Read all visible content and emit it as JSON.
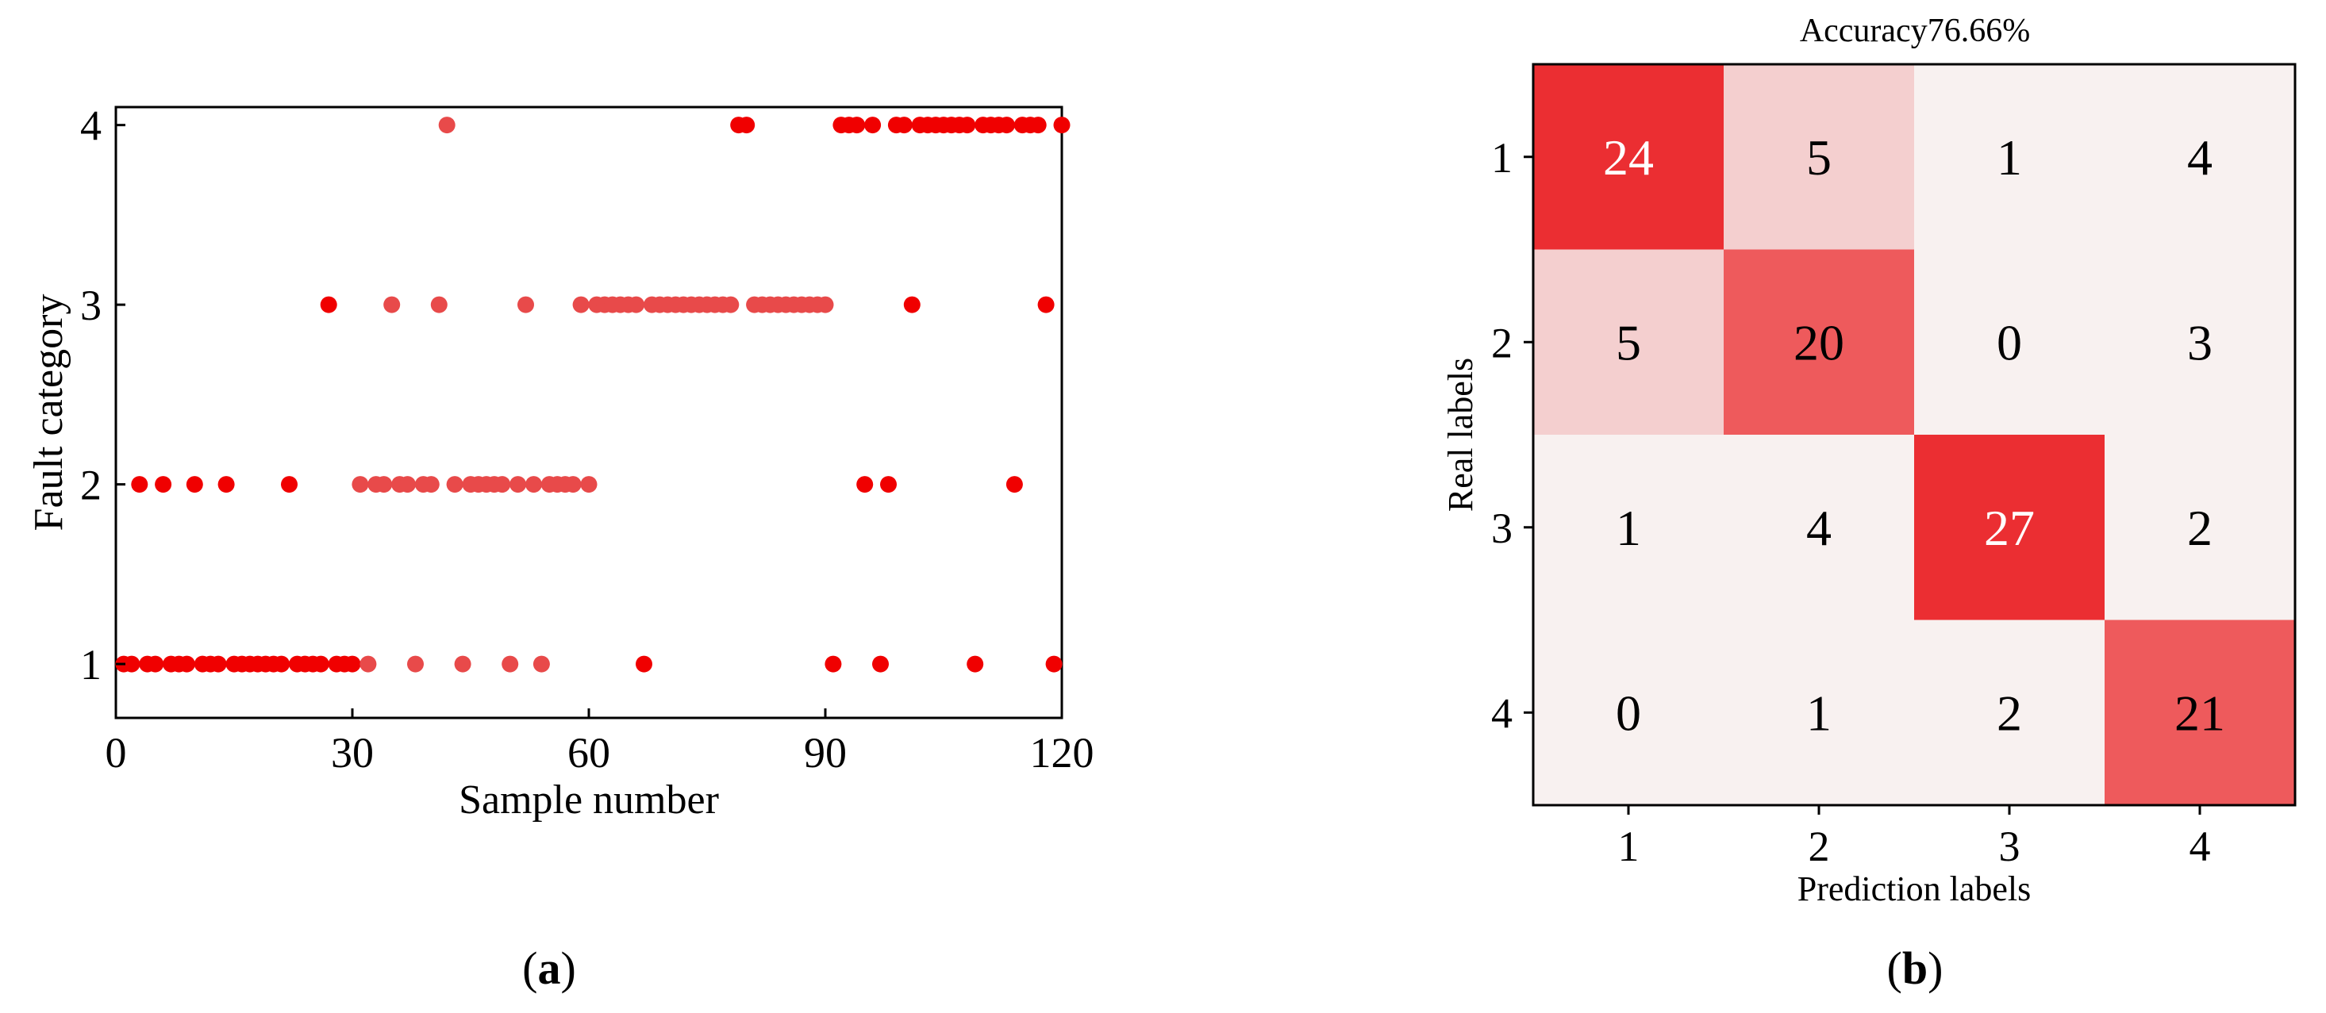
{
  "colors": {
    "point_primary": "#f00000",
    "point_secondary": "#e84a4a",
    "cm_max": "#eb2e32",
    "cm_high": "#ee5a5c",
    "cm_light": "#f4cfcf",
    "cm_min": "#f8f1f0",
    "axis": "#000000"
  },
  "labels": {
    "panel_a": "a",
    "panel_b": "b"
  },
  "chart_data": [
    {
      "type": "scatter",
      "xlabel": "Sample number",
      "ylabel": "Fault category",
      "xlim": [
        0,
        120
      ],
      "ylim": [
        0.7,
        4.1
      ],
      "xticks": [
        0,
        30,
        60,
        90,
        120
      ],
      "yticks": [
        1,
        2,
        3,
        4
      ],
      "grid": false,
      "series": [
        {
          "color_key": "point_primary",
          "points": [
            [
              1,
              1
            ],
            [
              2,
              1
            ],
            [
              3,
              2
            ],
            [
              4,
              1
            ],
            [
              5,
              1
            ],
            [
              6,
              2
            ],
            [
              7,
              1
            ],
            [
              8,
              1
            ],
            [
              9,
              1
            ],
            [
              10,
              2
            ],
            [
              11,
              1
            ],
            [
              12,
              1
            ],
            [
              13,
              1
            ],
            [
              14,
              2
            ],
            [
              15,
              1
            ],
            [
              16,
              1
            ],
            [
              17,
              1
            ],
            [
              18,
              1
            ],
            [
              19,
              1
            ],
            [
              20,
              1
            ],
            [
              21,
              1
            ],
            [
              22,
              2
            ],
            [
              23,
              1
            ],
            [
              24,
              1
            ],
            [
              25,
              1
            ],
            [
              26,
              1
            ],
            [
              27,
              3
            ],
            [
              28,
              1
            ],
            [
              29,
              1
            ],
            [
              30,
              1
            ],
            [
              67,
              1
            ],
            [
              79,
              4
            ],
            [
              80,
              4
            ],
            [
              91,
              1
            ],
            [
              92,
              4
            ],
            [
              93,
              4
            ],
            [
              94,
              4
            ],
            [
              95,
              2
            ],
            [
              96,
              4
            ],
            [
              97,
              1
            ],
            [
              98,
              2
            ],
            [
              99,
              4
            ],
            [
              100,
              4
            ],
            [
              101,
              3
            ],
            [
              102,
              4
            ],
            [
              103,
              4
            ],
            [
              104,
              4
            ],
            [
              105,
              4
            ],
            [
              106,
              4
            ],
            [
              107,
              4
            ],
            [
              108,
              4
            ],
            [
              109,
              1
            ],
            [
              110,
              4
            ],
            [
              111,
              4
            ],
            [
              112,
              4
            ],
            [
              113,
              4
            ],
            [
              114,
              2
            ],
            [
              115,
              4
            ],
            [
              116,
              4
            ],
            [
              117,
              4
            ],
            [
              118,
              3
            ],
            [
              119,
              1
            ],
            [
              120,
              4
            ]
          ]
        },
        {
          "color_key": "point_secondary",
          "points": [
            [
              31,
              2
            ],
            [
              32,
              1
            ],
            [
              33,
              2
            ],
            [
              34,
              2
            ],
            [
              35,
              3
            ],
            [
              36,
              2
            ],
            [
              37,
              2
            ],
            [
              38,
              1
            ],
            [
              39,
              2
            ],
            [
              40,
              2
            ],
            [
              41,
              3
            ],
            [
              42,
              4
            ],
            [
              43,
              2
            ],
            [
              44,
              1
            ],
            [
              45,
              2
            ],
            [
              46,
              2
            ],
            [
              47,
              2
            ],
            [
              48,
              2
            ],
            [
              49,
              2
            ],
            [
              50,
              1
            ],
            [
              51,
              2
            ],
            [
              52,
              3
            ],
            [
              53,
              2
            ],
            [
              54,
              1
            ],
            [
              55,
              2
            ],
            [
              56,
              2
            ],
            [
              57,
              2
            ],
            [
              58,
              2
            ],
            [
              59,
              3
            ],
            [
              60,
              2
            ],
            [
              61,
              3
            ],
            [
              62,
              3
            ],
            [
              63,
              3
            ],
            [
              64,
              3
            ],
            [
              65,
              3
            ],
            [
              66,
              3
            ],
            [
              68,
              3
            ],
            [
              69,
              3
            ],
            [
              70,
              3
            ],
            [
              71,
              3
            ],
            [
              72,
              3
            ],
            [
              73,
              3
            ],
            [
              74,
              3
            ],
            [
              75,
              3
            ],
            [
              76,
              3
            ],
            [
              77,
              3
            ],
            [
              78,
              3
            ],
            [
              81,
              3
            ],
            [
              82,
              3
            ],
            [
              83,
              3
            ],
            [
              84,
              3
            ],
            [
              85,
              3
            ],
            [
              86,
              3
            ],
            [
              87,
              3
            ],
            [
              88,
              3
            ],
            [
              89,
              3
            ],
            [
              90,
              3
            ]
          ]
        }
      ]
    },
    {
      "type": "heatmap",
      "title": "Accuracy76.66%",
      "xlabel": "Prediction labels",
      "ylabel": "Real labels",
      "x_categories": [
        "1",
        "2",
        "3",
        "4"
      ],
      "y_categories": [
        "1",
        "2",
        "3",
        "4"
      ],
      "matrix": [
        [
          24,
          5,
          1,
          4
        ],
        [
          5,
          20,
          0,
          3
        ],
        [
          1,
          4,
          27,
          2
        ],
        [
          0,
          1,
          2,
          21
        ]
      ],
      "cell_colors": [
        [
          "cm_max",
          "cm_light",
          "cm_min",
          "cm_min"
        ],
        [
          "cm_light",
          "cm_high",
          "cm_min",
          "cm_min"
        ],
        [
          "cm_min",
          "cm_min",
          "cm_max",
          "cm_min"
        ],
        [
          "cm_min",
          "cm_min",
          "cm_min",
          "cm_high"
        ]
      ],
      "text_colors": [
        [
          "#ffffff",
          "#000000",
          "#000000",
          "#000000"
        ],
        [
          "#000000",
          "#000000",
          "#000000",
          "#000000"
        ],
        [
          "#000000",
          "#000000",
          "#ffffff",
          "#000000"
        ],
        [
          "#000000",
          "#000000",
          "#000000",
          "#000000"
        ]
      ]
    }
  ]
}
